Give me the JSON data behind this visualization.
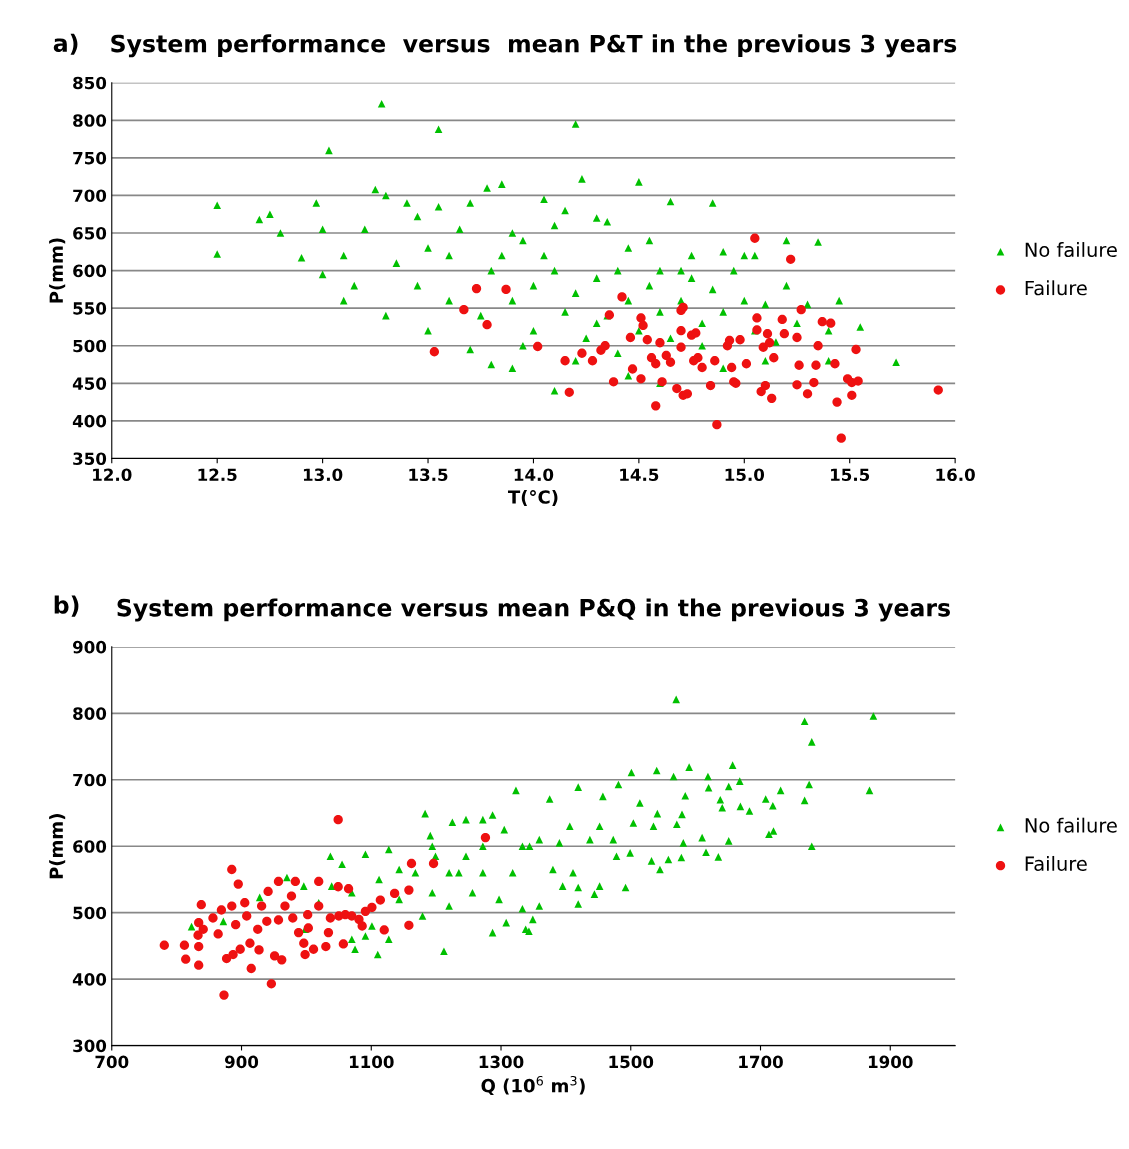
{
  "chart_data": [
    {
      "type": "scatter",
      "title": "System performance  versus  mean P&T in the previous 3 years",
      "xlabel": "T(°C)",
      "ylabel": "P(mm)",
      "annotations": [
        "a)"
      ],
      "xlim": [
        12.0,
        16.0
      ],
      "ylim": [
        350,
        850
      ],
      "xticks": [
        {
          "value": 12,
          "label": "12.0"
        },
        {
          "value": 12.5,
          "label": "12.5"
        },
        {
          "value": 13,
          "label": "13.0"
        },
        {
          "value": 13.5,
          "label": "13.5"
        },
        {
          "value": 14,
          "label": "14.0"
        },
        {
          "value": 14.5,
          "label": "14.5"
        },
        {
          "value": 15,
          "label": "15.0"
        },
        {
          "value": 15.5,
          "label": "15.5"
        },
        {
          "value": 16,
          "label": "16.0"
        }
      ],
      "yticks": [
        350,
        400,
        450,
        500,
        550,
        600,
        650,
        700,
        750,
        800,
        850
      ],
      "grid": "y",
      "legend": "right",
      "series": [
        {
          "name": "No failure",
          "color": "#00c000",
          "marker": "triangle",
          "x": [
            12.5,
            12.5,
            12.7,
            12.75,
            12.8,
            12.9,
            12.97,
            13.0,
            13.03,
            13.0,
            13.1,
            13.15,
            13.2,
            13.25,
            13.28,
            13.3,
            13.35,
            13.4,
            13.45,
            13.5,
            13.55,
            13.55,
            13.6,
            13.65,
            13.7,
            13.78,
            13.85,
            13.9,
            13.95,
            14.05,
            14.1,
            14.15,
            14.2,
            14.23,
            14.3,
            14.35,
            14.45,
            14.5,
            14.55,
            14.65,
            14.7,
            14.75,
            14.85,
            14.9,
            15.0,
            15.05,
            15.2,
            15.35,
            15.45,
            15.55,
            15.72,
            15.4,
            15.1,
            14.6,
            14.1,
            13.8,
            13.7,
            13.5,
            13.3,
            13.1,
            13.45,
            13.6,
            13.8,
            13.9,
            14.0,
            14.0,
            14.1,
            14.15,
            14.2,
            14.25,
            14.3,
            14.35,
            14.4,
            14.45,
            14.5,
            14.55,
            14.6,
            14.65,
            14.7,
            14.75,
            14.8,
            14.85,
            14.9,
            14.95,
            15.0,
            15.05,
            15.1,
            15.2,
            15.25,
            15.3,
            15.4,
            14.2,
            14.4,
            14.9,
            13.95,
            14.3,
            13.75,
            14.05,
            13.85,
            14.6,
            14.8,
            15.15,
            14.45,
            13.9
          ],
          "values": [
            687,
            622,
            668,
            675,
            650,
            617,
            690,
            655,
            760,
            595,
            620,
            580,
            655,
            708,
            822,
            700,
            610,
            690,
            672,
            630,
            788,
            685,
            620,
            655,
            690,
            710,
            715,
            650,
            640,
            695,
            660,
            680,
            795,
            722,
            670,
            665,
            630,
            718,
            640,
            692,
            600,
            620,
            690,
            625,
            620,
            620,
            640,
            638,
            560,
            525,
            478,
            480,
            480,
            450,
            440,
            475,
            495,
            520,
            540,
            560,
            580,
            560,
            600,
            560,
            580,
            520,
            600,
            545,
            570,
            510,
            590,
            540,
            600,
            560,
            520,
            580,
            545,
            510,
            560,
            590,
            530,
            575,
            545,
            600,
            560,
            520,
            555,
            580,
            530,
            555,
            520,
            480,
            490,
            470,
            500,
            530,
            540,
            620,
            620,
            600,
            500,
            505,
            460,
            470
          ]
        },
        {
          "name": "Failure",
          "color": "#ee1111",
          "marker": "circle",
          "x": [
            13.53,
            13.73,
            13.67,
            13.78,
            13.87,
            15.05,
            15.22,
            14.42,
            14.36,
            14.02,
            14.15,
            14.17,
            14.23,
            14.32,
            14.34,
            14.28,
            14.38,
            14.46,
            14.47,
            14.51,
            14.52,
            14.54,
            14.51,
            14.56,
            14.58,
            14.58,
            14.6,
            14.61,
            14.63,
            14.65,
            14.68,
            14.7,
            14.71,
            14.7,
            14.71,
            14.73,
            14.7,
            14.75,
            14.77,
            14.78,
            14.76,
            14.8,
            14.84,
            14.86,
            14.87,
            14.92,
            14.93,
            14.94,
            14.95,
            14.96,
            14.98,
            15.01,
            15.06,
            15.06,
            15.09,
            15.11,
            15.12,
            15.08,
            15.1,
            15.13,
            15.14,
            15.18,
            15.19,
            15.25,
            15.25,
            15.26,
            15.27,
            15.3,
            15.33,
            15.34,
            15.35,
            15.37,
            15.41,
            15.43,
            15.44,
            15.46,
            15.49,
            15.51,
            15.51,
            15.53,
            15.54,
            15.92
          ],
          "values": [
            492,
            576,
            548,
            528,
            575,
            643,
            615,
            565,
            541,
            499,
            480,
            438,
            490,
            494,
            500,
            480,
            452,
            511,
            469,
            537,
            527,
            508,
            456,
            484,
            476,
            420,
            504,
            452,
            487,
            478,
            443,
            547,
            551,
            498,
            434,
            436,
            520,
            514,
            517,
            484,
            480,
            471,
            447,
            480,
            395,
            500,
            507,
            471,
            452,
            450,
            508,
            476,
            537,
            521,
            498,
            516,
            504,
            439,
            447,
            430,
            484,
            535,
            516,
            511,
            448,
            474,
            548,
            436,
            451,
            474,
            500,
            532,
            530,
            476,
            425,
            377,
            456,
            451,
            434,
            495,
            453,
            441
          ]
        }
      ]
    },
    {
      "type": "scatter",
      "title": "System performance versus mean P&Q in the previous 3 years",
      "xlabel": "Q (10$^{6}$ m$^{3}$)",
      "ylabel": "P(mm)",
      "annotations": [
        "b)"
      ],
      "xlim": [
        700,
        2000
      ],
      "ylim": [
        300,
        900
      ],
      "xticks": [
        700,
        900,
        1100,
        1300,
        1500,
        1700,
        1900
      ],
      "yticks": [
        300,
        400,
        500,
        600,
        700,
        800,
        900
      ],
      "grid": "y",
      "legend": "right",
      "series": [
        {
          "name": "No failure",
          "color": "#00c000",
          "marker": "triangle",
          "x": [
            1570,
            1768,
            1779,
            1874,
            1868,
            1779,
            1775,
            1768,
            1731,
            1720,
            1713,
            1708,
            1719,
            1683,
            1669,
            1668,
            1657,
            1651,
            1638,
            1641,
            1651,
            1635,
            1616,
            1610,
            1620,
            1619,
            1590,
            1566,
            1540,
            1501,
            1481,
            1419,
            1584,
            1579,
            1571,
            1581,
            1578,
            1558,
            1545,
            1532,
            1541,
            1514,
            1492,
            1478,
            1452,
            1444,
            1419,
            1419,
            1375,
            1359,
            1349,
            1343,
            1333,
            1457,
            1452,
            1504,
            1499,
            1406,
            1437,
            1390,
            1380,
            1359,
            1344,
            1411,
            1473,
            1535,
            1395,
            1323,
            1183,
            1225,
            1246,
            1272,
            1287,
            1305,
            1191,
            1127,
            1091,
            1037,
            1055,
            823,
            872,
            928,
            970,
            996,
            1070,
            1075,
            1110,
            1127,
            1091,
            1101,
            1143,
            1168,
            1194,
            1212,
            1220,
            1246,
            1256,
            1272,
            1287,
            1308,
            1318,
            1333,
            1338,
            1297,
            1179,
            1199,
            1143,
            1112,
            1039,
            1019,
            998,
            1070,
            1235,
            1272,
            1220,
            1194
          ],
          "values": [
            821,
            788,
            757,
            796,
            684,
            600,
            693,
            669,
            684,
            623,
            618,
            671,
            661,
            653,
            660,
            698,
            722,
            690,
            670,
            658,
            608,
            584,
            591,
            613,
            688,
            705,
            719,
            705,
            714,
            711,
            693,
            689,
            676,
            648,
            633,
            605,
            583,
            580,
            565,
            578,
            649,
            665,
            538,
            585,
            540,
            528,
            513,
            538,
            671,
            510,
            490,
            472,
            506,
            675,
            630,
            635,
            590,
            630,
            610,
            605,
            565,
            610,
            600,
            560,
            610,
            630,
            540,
            684,
            649,
            636,
            640,
            640,
            647,
            625,
            616,
            595,
            588,
            585,
            573,
            479,
            487,
            523,
            553,
            540,
            460,
            445,
            437,
            460,
            465,
            480,
            520,
            560,
            530,
            442,
            510,
            585,
            530,
            560,
            470,
            485,
            560,
            600,
            475,
            520,
            495,
            585,
            565,
            550,
            540,
            515,
            475,
            530,
            560,
            600,
            560,
            600
          ]
        },
        {
          "name": "Failure",
          "color": "#ee1111",
          "marker": "circle",
          "x": [
            781,
            812,
            814,
            834,
            834,
            833,
            838,
            834,
            841,
            856,
            864,
            869,
            873,
            877,
            885,
            885,
            887,
            891,
            895,
            898,
            905,
            908,
            913,
            915,
            925,
            927,
            931,
            939,
            941,
            946,
            951,
            957,
            957,
            962,
            967,
            977,
            983,
            979,
            988,
            996,
            998,
            1002,
            1003,
            1011,
            1019,
            1019,
            1030,
            1034,
            1037,
            1049,
            1049,
            1050,
            1057,
            1060,
            1065,
            1070,
            1081,
            1086,
            1091,
            1101,
            1114,
            1120,
            1136,
            1158,
            1158,
            1162,
            1196,
            1276
          ],
          "values": [
            451,
            451,
            430,
            421,
            449,
            466,
            512,
            485,
            475,
            492,
            468,
            504,
            376,
            431,
            565,
            510,
            437,
            482,
            543,
            445,
            515,
            495,
            454,
            416,
            475,
            444,
            510,
            487,
            532,
            393,
            435,
            547,
            489,
            429,
            510,
            525,
            547,
            492,
            470,
            454,
            437,
            497,
            477,
            445,
            547,
            510,
            449,
            470,
            492,
            539,
            640,
            495,
            453,
            497,
            536,
            495,
            490,
            480,
            502,
            508,
            519,
            474,
            529,
            534,
            481,
            574,
            574,
            613
          ]
        }
      ]
    }
  ]
}
